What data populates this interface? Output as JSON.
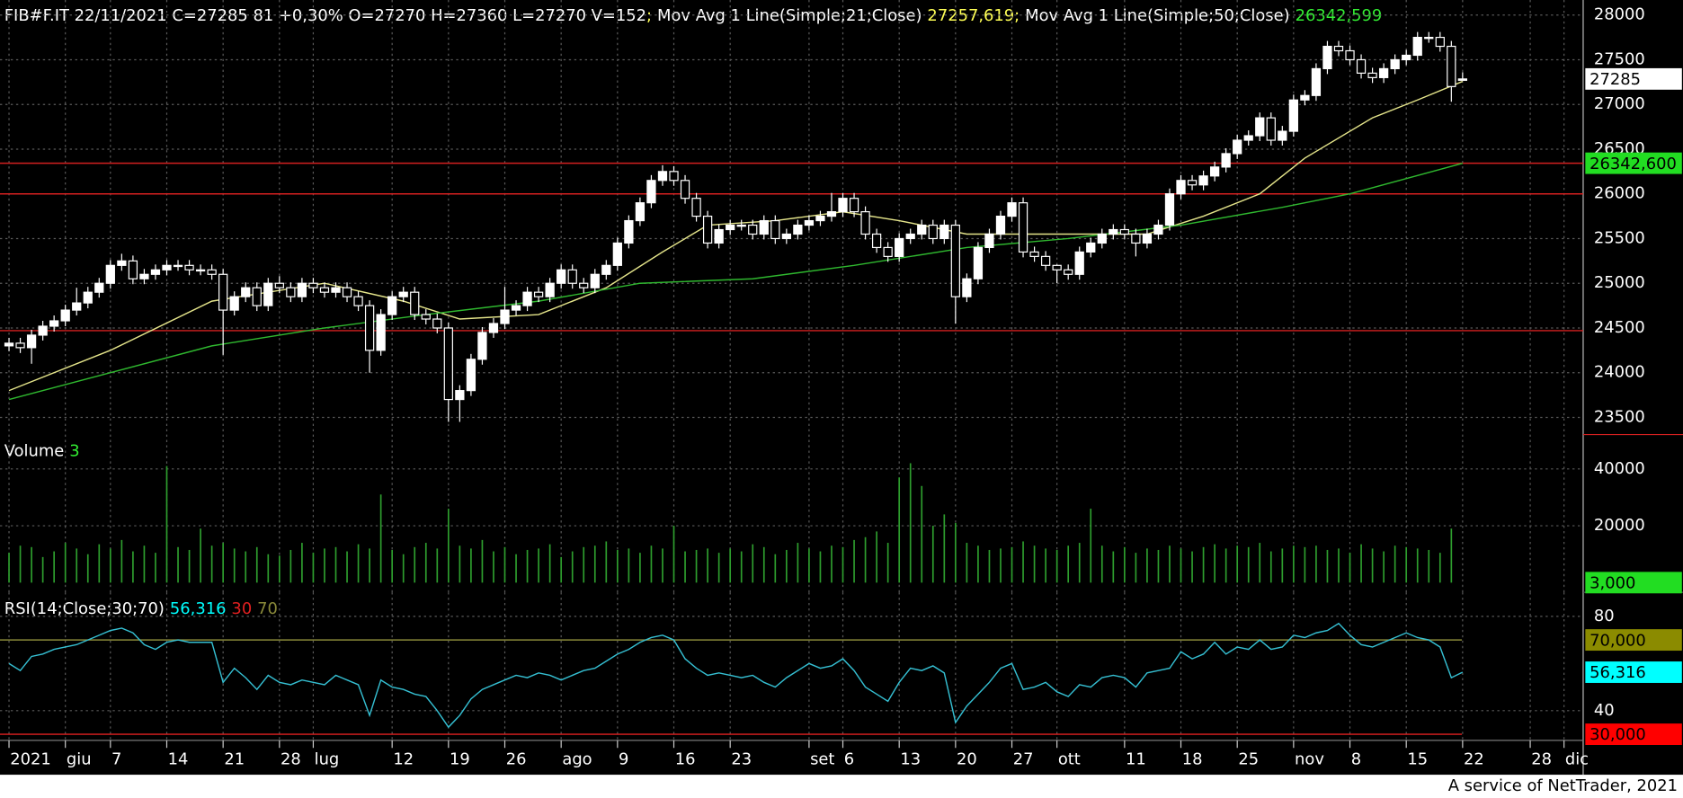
{
  "header": {
    "info": "FIB#F.IT 22/11/2021 C=27285 81 +0,30% O=27270 H=27360 L=27270 V=152",
    "separator": ";"
  },
  "footer": "A service of NetTrader, 2021",
  "chart_data": [
    {
      "type": "candlestick",
      "color": "#ffffff",
      "down_color": "#000000",
      "open": [
        24300,
        24330,
        24280,
        24420,
        24520,
        24580,
        24700,
        24780,
        24900,
        25000,
        25200,
        25250,
        25050,
        25100,
        25150,
        25200,
        25200,
        25150,
        25150,
        25100,
        24700,
        24850,
        24950,
        24750,
        25000,
        24950,
        24850,
        25000,
        24950,
        24900,
        24950,
        24850,
        24750,
        24250,
        24650,
        24850,
        24900,
        24650,
        24600,
        24500,
        23700,
        23800,
        24150,
        24450,
        24550,
        24700,
        24750,
        24900,
        24850,
        25000,
        25150,
        25000,
        24950,
        25100,
        25200,
        25450,
        25700,
        25900,
        26150,
        26250,
        26150,
        25950,
        25750,
        25450,
        25600,
        25650,
        25650,
        25550,
        25700,
        25500,
        25550,
        25650,
        25700,
        25750,
        25800,
        25950,
        25800,
        25550,
        25400,
        25300,
        25500,
        25550,
        25650,
        25500,
        25650,
        24850,
        25050,
        25400,
        25550,
        25750,
        25900,
        25350,
        25300,
        25200,
        25150,
        25100,
        25350,
        25450,
        25550,
        25600,
        25550,
        25450,
        25550,
        25650,
        26000,
        26150,
        26100,
        26200,
        26300,
        26450,
        26600,
        26650,
        26850,
        26600,
        26700,
        27050,
        27100,
        27400,
        27650,
        27600,
        27500,
        27350,
        27300,
        27400,
        27500,
        27550,
        27750,
        27750,
        27650,
        27270
      ],
      "high": [
        24390,
        24390,
        24480,
        24580,
        24640,
        24760,
        24950,
        24960,
        25060,
        25260,
        25330,
        25310,
        25160,
        25210,
        25260,
        25260,
        25260,
        25210,
        25210,
        25160,
        24910,
        25010,
        25010,
        25060,
        25080,
        25010,
        25060,
        25060,
        25010,
        25010,
        25010,
        24910,
        24810,
        24710,
        24910,
        24960,
        24960,
        24710,
        24660,
        24560,
        23860,
        24210,
        24510,
        24610,
        24960,
        24810,
        24960,
        24960,
        25060,
        25210,
        25210,
        25060,
        25160,
        25260,
        25510,
        25760,
        25960,
        26210,
        26320,
        26310,
        26210,
        26010,
        25810,
        25660,
        25710,
        25710,
        25710,
        25760,
        25760,
        25610,
        25710,
        25760,
        25810,
        26010,
        26010,
        26010,
        25860,
        25610,
        25460,
        25560,
        25610,
        25710,
        25710,
        25710,
        25710,
        25110,
        25460,
        25610,
        25810,
        25960,
        25960,
        25410,
        25360,
        25210,
        25210,
        25410,
        25510,
        25610,
        25660,
        25660,
        25610,
        25610,
        25710,
        26060,
        26210,
        26210,
        26260,
        26360,
        26510,
        26660,
        26710,
        26910,
        26910,
        26760,
        27110,
        27160,
        27460,
        27710,
        27710,
        27660,
        27560,
        27410,
        27460,
        27560,
        27610,
        27810,
        27810,
        27810,
        27710,
        27360
      ],
      "low": [
        24240,
        24220,
        24100,
        24360,
        24460,
        24520,
        24640,
        24720,
        24840,
        24940,
        25140,
        24990,
        24990,
        25040,
        25090,
        25140,
        25090,
        25090,
        25040,
        24200,
        24640,
        24790,
        24690,
        24690,
        24890,
        24790,
        24790,
        24890,
        24840,
        24840,
        24790,
        24690,
        24000,
        24190,
        24590,
        24790,
        24590,
        24540,
        24440,
        23450,
        23450,
        23740,
        24090,
        24390,
        24490,
        24640,
        24690,
        24790,
        24790,
        24940,
        24940,
        24890,
        24890,
        25040,
        25140,
        25390,
        25640,
        25840,
        26090,
        26090,
        25890,
        25690,
        25390,
        25390,
        25540,
        25590,
        25490,
        25490,
        25440,
        25440,
        25490,
        25590,
        25640,
        25690,
        25740,
        25740,
        25490,
        25340,
        25240,
        25240,
        25440,
        25490,
        25440,
        25440,
        24550,
        24790,
        24990,
        25340,
        25490,
        25690,
        25290,
        25240,
        25140,
        25000,
        25040,
        25040,
        25290,
        25390,
        25490,
        25490,
        25300,
        25390,
        25490,
        25590,
        25940,
        26040,
        26040,
        26140,
        26240,
        26390,
        26540,
        26590,
        26540,
        26540,
        26640,
        26990,
        27040,
        27340,
        27540,
        27440,
        27290,
        27240,
        27240,
        27340,
        27440,
        27490,
        27690,
        27590,
        27030,
        27270
      ],
      "close": [
        24330,
        24280,
        24420,
        24520,
        24580,
        24700,
        24780,
        24900,
        25000,
        25200,
        25250,
        25050,
        25100,
        25150,
        25200,
        25200,
        25150,
        25150,
        25100,
        24700,
        24850,
        24950,
        24750,
        25000,
        24950,
        24850,
        25000,
        24950,
        24900,
        24950,
        24850,
        24750,
        24250,
        24650,
        24850,
        24900,
        24650,
        24600,
        24500,
        23700,
        23800,
        24150,
        24450,
        24550,
        24700,
        24750,
        24900,
        24850,
        25000,
        25150,
        25000,
        24950,
        25100,
        25200,
        25450,
        25700,
        25900,
        26150,
        26250,
        26150,
        25950,
        25750,
        25450,
        25600,
        25650,
        25650,
        25550,
        25700,
        25500,
        25550,
        25650,
        25700,
        25750,
        25800,
        25950,
        25800,
        25550,
        25400,
        25300,
        25500,
        25550,
        25650,
        25500,
        25650,
        24850,
        25050,
        25400,
        25550,
        25750,
        25900,
        25350,
        25300,
        25200,
        25150,
        25100,
        25350,
        25450,
        25550,
        25600,
        25550,
        25450,
        25550,
        25650,
        26000,
        26150,
        26100,
        26200,
        26300,
        26450,
        26600,
        26650,
        26850,
        26600,
        26700,
        27050,
        27100,
        27400,
        27650,
        27600,
        27500,
        27350,
        27300,
        27400,
        27500,
        27550,
        27750,
        27750,
        27650,
        27200,
        27285
      ],
      "series": [
        {
          "name": "Mov Avg 1 Line(Simple;21;Close)",
          "color": "#e4e48a",
          "label_color": "#ffff55",
          "value_label": "27257,619",
          "x": [
            0,
            9,
            18,
            28,
            35,
            40,
            47,
            53,
            58,
            62,
            68,
            74,
            79,
            85,
            91,
            96,
            101,
            106,
            111,
            115,
            121,
            125,
            129
          ],
          "values": [
            23800,
            24250,
            24800,
            25000,
            24800,
            24600,
            24650,
            24950,
            25350,
            25650,
            25700,
            25800,
            25700,
            25550,
            25550,
            25550,
            25550,
            25750,
            26000,
            26400,
            26850,
            27050,
            27257.619
          ]
        },
        {
          "name": "Mov Avg 1 Line(Simple;50;Close)",
          "color": "#2fb82f",
          "label_color": "#33ee33",
          "value_label": "26342,599",
          "x": [
            0,
            9,
            18,
            28,
            37,
            47,
            56,
            66,
            75,
            85,
            94,
            104,
            113,
            119,
            129
          ],
          "values": [
            23700,
            24000,
            24300,
            24500,
            24650,
            24800,
            25000,
            25050,
            25200,
            25400,
            25500,
            25650,
            25850,
            26000,
            26342.599
          ]
        }
      ],
      "ylim": [
        23308,
        28168
      ],
      "yticks": [
        23500,
        24000,
        24500,
        25000,
        25500,
        26000,
        26500,
        27000,
        27500,
        28000
      ],
      "grid": true,
      "hlines": [
        24470,
        26000,
        26342.6
      ],
      "hline_color": "#d42020",
      "markers": [
        {
          "value": 27285,
          "color": "#ffffff"
        },
        {
          "value": 26342.6,
          "label": "26342,600",
          "color": "#22dd22"
        }
      ]
    },
    {
      "type": "bar",
      "title": "Volume",
      "color": "#2e9e2e",
      "label_color": "#33ee33",
      "values": [
        10500,
        13000,
        12500,
        9000,
        11000,
        14000,
        12000,
        10000,
        13500,
        12000,
        15000,
        11000,
        13000,
        10500,
        41000,
        12500,
        11500,
        19000,
        13000,
        14000,
        12000,
        11000,
        12500,
        10000,
        9500,
        11500,
        14000,
        10500,
        12000,
        12500,
        11000,
        13500,
        12000,
        31000,
        11500,
        10000,
        12500,
        14000,
        12000,
        26000,
        13000,
        12000,
        15000,
        11000,
        12500,
        10000,
        11500,
        12000,
        13500,
        9000,
        11000,
        12500,
        13000,
        14500,
        11500,
        12000,
        10500,
        13000,
        12000,
        20000,
        11000,
        11500,
        12000,
        10500,
        12000,
        11000,
        13500,
        12500,
        10000,
        11500,
        14000,
        12000,
        11000,
        13000,
        12500,
        15000,
        16000,
        18000,
        14000,
        37000,
        42000,
        34000,
        20000,
        24000,
        21000,
        14000,
        13000,
        11500,
        12000,
        12500,
        14500,
        13000,
        12000,
        11500,
        13000,
        14000,
        26000,
        13000,
        11000,
        12500,
        10500,
        12000,
        11500,
        13000,
        12000,
        11000,
        12500,
        13500,
        12000,
        13000,
        12500,
        14000,
        11000,
        12000,
        13000,
        12500,
        13000,
        11500,
        12000,
        10500,
        13500,
        12000,
        11000,
        13000,
        12500,
        12000,
        11500,
        10500,
        19000,
        3
      ],
      "ylim": [
        -3400,
        52075
      ],
      "yticks": [
        20000,
        40000
      ],
      "grid": true,
      "markers": [
        {
          "value": 3,
          "label": "3,000",
          "color": "#22dd22"
        }
      ]
    },
    {
      "type": "line",
      "title": "RSI(14;Close;30;70)",
      "series": [
        {
          "color": "#35bfd2",
          "values": [
            60,
            57,
            63,
            64,
            66,
            67,
            68,
            70,
            72,
            74,
            75,
            73,
            68,
            66,
            69,
            70,
            69,
            69,
            69,
            52,
            58,
            54,
            49,
            55,
            52,
            51,
            53,
            52,
            51,
            55,
            53,
            51,
            38,
            53,
            50,
            49,
            47,
            46,
            40,
            33,
            38,
            45,
            49,
            51,
            53,
            55,
            54,
            56,
            55,
            53,
            55,
            57,
            58,
            61,
            64,
            66,
            69,
            71,
            72,
            70,
            62,
            58,
            55,
            56,
            55,
            54,
            55,
            52,
            50,
            54,
            57,
            60,
            58,
            59,
            62,
            57,
            50,
            47,
            44,
            52,
            58,
            57,
            59,
            56,
            35,
            42,
            47,
            52,
            58,
            60,
            49,
            50,
            52,
            48,
            46,
            51,
            50,
            54,
            55,
            54,
            50,
            56,
            57,
            58,
            65,
            62,
            64,
            69,
            64,
            67,
            66,
            70,
            66,
            67,
            72,
            71,
            73,
            74,
            77,
            72,
            68,
            67,
            69,
            71,
            73,
            71,
            70,
            67,
            54,
            56.316
          ]
        }
      ],
      "levels": [
        {
          "value": 30,
          "color": "#e02020"
        },
        {
          "value": 70,
          "color": "#8a8a3a"
        }
      ],
      "ylim": [
        27.4,
        90.2
      ],
      "yticks": [
        40,
        80
      ],
      "grid": true,
      "markers": [
        {
          "value": 70,
          "label": "70,000",
          "color": "#8b8b00"
        },
        {
          "value": 56.316,
          "label": "56,316",
          "color": "#00ffff"
        },
        {
          "value": 30,
          "label": "30,000",
          "color": "#ff0000"
        }
      ],
      "xlim": [
        -0.8,
        139.7
      ],
      "xticks": [
        {
          "value": 0,
          "label": "2021"
        },
        {
          "value": 5,
          "label": "giu"
        },
        {
          "value": 9,
          "label": "7"
        },
        {
          "value": 14,
          "label": "14"
        },
        {
          "value": 19,
          "label": "21"
        },
        {
          "value": 24,
          "label": "28"
        },
        {
          "value": 27,
          "label": "lug"
        },
        {
          "value": 34,
          "label": "12"
        },
        {
          "value": 39,
          "label": "19"
        },
        {
          "value": 44,
          "label": "26"
        },
        {
          "value": 49,
          "label": "ago"
        },
        {
          "value": 54,
          "label": "9"
        },
        {
          "value": 59,
          "label": "16"
        },
        {
          "value": 64,
          "label": "23"
        },
        {
          "value": 71,
          "label": "set"
        },
        {
          "value": 74,
          "label": "6"
        },
        {
          "value": 79,
          "label": "13"
        },
        {
          "value": 84,
          "label": "20"
        },
        {
          "value": 89,
          "label": "27"
        },
        {
          "value": 93,
          "label": "ott"
        },
        {
          "value": 99,
          "label": "11"
        },
        {
          "value": 104,
          "label": "18"
        },
        {
          "value": 109,
          "label": "25"
        },
        {
          "value": 114,
          "label": "nov"
        },
        {
          "value": 119,
          "label": "8"
        },
        {
          "value": 124,
          "label": "15"
        },
        {
          "value": 129,
          "label": "22"
        },
        {
          "value": 135,
          "label": "28"
        },
        {
          "value": 138,
          "label": "dic"
        }
      ]
    }
  ]
}
